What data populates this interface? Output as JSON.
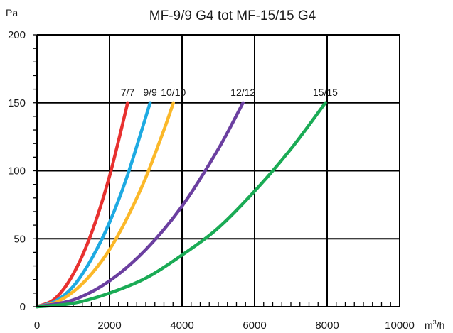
{
  "chart_data": {
    "type": "line",
    "title": "MF-9/9 G4 tot MF-15/15 G4",
    "ylabel": "Pa",
    "xlabel_prefix": "m",
    "xlabel_sup": "3",
    "xlabel_suffix": "/h",
    "xlim": [
      0,
      10000
    ],
    "ylim": [
      0,
      200
    ],
    "grid": true,
    "x_ticks": [
      0,
      2000,
      4000,
      6000,
      8000,
      10000
    ],
    "y_ticks": [
      0,
      50,
      100,
      150,
      200
    ],
    "x_tick_labels": [
      "0",
      "2000",
      "4000",
      "6000",
      "8000",
      "10000"
    ],
    "y_tick_labels": [
      "0",
      "50",
      "100",
      "150",
      "200"
    ],
    "series": [
      {
        "name": "7/7",
        "color": "#e8312f",
        "x": [
          0,
          500,
          1000,
          1500,
          2000,
          2500
        ],
        "y": [
          0,
          6,
          24,
          54,
          96,
          150
        ]
      },
      {
        "name": "9/9",
        "color": "#1eaae2",
        "x": [
          0,
          500,
          1000,
          1500,
          2000,
          2500,
          3120
        ],
        "y": [
          0,
          4,
          15,
          35,
          62,
          97,
          150
        ]
      },
      {
        "name": "10/10",
        "color": "#fbb829",
        "x": [
          0,
          500,
          1000,
          1500,
          2000,
          2500,
          3000,
          3500,
          3760
        ],
        "y": [
          0,
          3,
          11,
          24,
          42,
          66,
          95,
          130,
          150
        ]
      },
      {
        "name": "12/12",
        "color": "#6b3fa0",
        "x": [
          0,
          1000,
          2000,
          3000,
          4000,
          5000,
          5680
        ],
        "y": [
          0,
          5,
          19,
          42,
          74,
          116,
          150
        ]
      },
      {
        "name": "15/15",
        "color": "#1aab55",
        "x": [
          0,
          1000,
          2000,
          3000,
          4000,
          5000,
          6000,
          7000,
          7950
        ],
        "y": [
          0,
          2.5,
          10,
          21,
          38,
          58,
          85,
          116,
          150
        ]
      }
    ]
  }
}
